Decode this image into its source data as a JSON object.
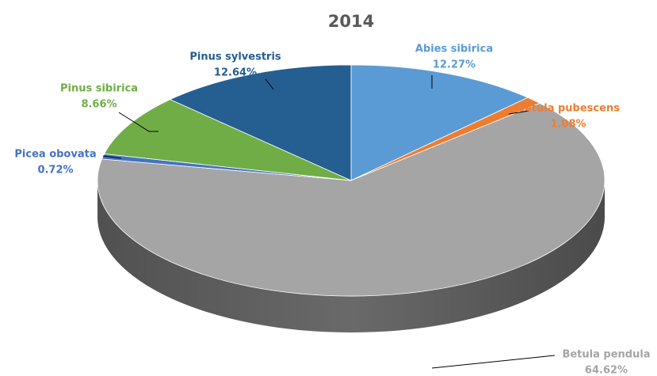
{
  "chart_data": {
    "type": "pie",
    "title": "2014",
    "categories": [
      "Abies sibirica",
      "Betula pubescens",
      "Betula pendula",
      "Picea obovata",
      "Pinus sibirica",
      "Pinus sylvestris"
    ],
    "values": [
      12.27,
      1.08,
      64.62,
      0.72,
      8.66,
      12.64
    ],
    "value_labels": [
      "12.27%",
      "1.08%",
      "64.62%",
      "0.72%",
      "8.66%",
      "12.64%"
    ],
    "colors": [
      "#5b9bd5",
      "#ed7d31",
      "#a5a5a5",
      "#4472c4",
      "#70ad47",
      "#255e91"
    ]
  }
}
